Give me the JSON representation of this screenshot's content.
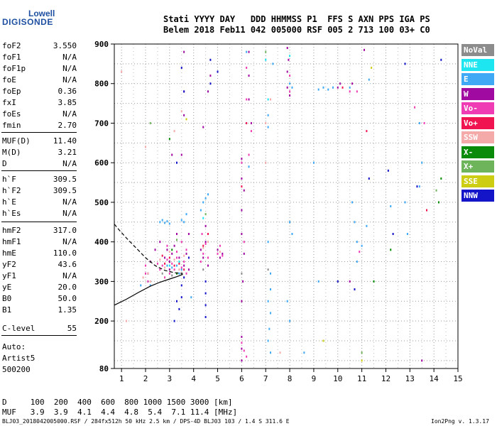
{
  "logo": {
    "line1": "Lowell",
    "line2": "DIGISONDE"
  },
  "header": {
    "line1": "Stati YYYY DAY   DDD HHMMSS P1  FFS S AXN PPS IGA PS",
    "line2": "Belem 2018 Feb11 042 005000 RSF 005 2 713 100 03+ C0"
  },
  "params": [
    {
      "name": "foF2",
      "value": "3.550"
    },
    {
      "name": "foF1",
      "value": "N/A"
    },
    {
      "name": "foF1p",
      "value": "N/A"
    },
    {
      "name": "foE",
      "value": "N/A"
    },
    {
      "name": "foEp",
      "value": "0.36"
    },
    {
      "name": "fxI",
      "value": "3.85"
    },
    {
      "name": "foEs",
      "value": "N/A"
    },
    {
      "name": "fmin",
      "value": "2.70"
    },
    {
      "name": "MUF(D)",
      "value": "11.40"
    },
    {
      "name": "M(D)",
      "value": "3.21"
    },
    {
      "name": "D",
      "value": "N/A"
    },
    {
      "name": "h`F",
      "value": "309.5"
    },
    {
      "name": "h`F2",
      "value": "309.5"
    },
    {
      "name": "h`E",
      "value": "N/A"
    },
    {
      "name": "h`Es",
      "value": "N/A"
    },
    {
      "name": "hmF2",
      "value": "317.0"
    },
    {
      "name": "hmF1",
      "value": "N/A"
    },
    {
      "name": "hmE",
      "value": "110.0"
    },
    {
      "name": "yF2",
      "value": "43.6"
    },
    {
      "name": "yF1",
      "value": "N/A"
    },
    {
      "name": "yE",
      "value": "20.0"
    },
    {
      "name": "B0",
      "value": "50.0"
    },
    {
      "name": "B1",
      "value": "1.35"
    },
    {
      "name": "C-level",
      "value": "55"
    }
  ],
  "autoscaling": {
    "line1": "Auto:",
    "line2": "Artist5",
    "line3": "500200"
  },
  "legend": [
    {
      "label": "NoVal",
      "color": "#8c8c8c"
    },
    {
      "label": "NNE",
      "color": "#1ee6f0"
    },
    {
      "label": "E",
      "color": "#3fa9f5"
    },
    {
      "label": "W",
      "color": "#a00aa0"
    },
    {
      "label": "Vo-",
      "color": "#f03cb4"
    },
    {
      "label": "Vo+",
      "color": "#f01450"
    },
    {
      "label": "SSW",
      "color": "#f5aaaa"
    },
    {
      "label": "X-",
      "color": "#0a8c0a"
    },
    {
      "label": "X+",
      "color": "#6eb45a"
    },
    {
      "label": "SSE",
      "color": "#cdcd14"
    },
    {
      "label": "NNW",
      "color": "#1414c8"
    }
  ],
  "footer": {
    "d_row": "D     100  200  400  600  800 1000 1500 3000 [km]",
    "muf_row": "MUF   3.9  3.9  4.1  4.4  4.8  5.4  7.1 11.4 [MHz]",
    "info": "BLJ03_2018042005000.RSF / 284fx512h 50 kHz 2.5 km / DPS-4D BLJ03 103 / 1.4 S 311.6 E",
    "version": "Ion2Png v. 1.3.17"
  },
  "chart_data": {
    "type": "scatter",
    "title": "",
    "xlabel": "",
    "ylabel": "",
    "xlim": [
      0.7,
      15
    ],
    "ylim": [
      80,
      900
    ],
    "xticks": [
      1,
      2,
      3,
      4,
      5,
      6,
      7,
      8,
      9,
      10,
      11,
      12,
      13,
      14,
      15
    ],
    "yticks": [
      80,
      200,
      300,
      400,
      500,
      600,
      700,
      800,
      900
    ],
    "grid": true,
    "series": [
      {
        "name": "E",
        "color": "#3fa9f5",
        "points": [
          [
            2.6,
            450
          ],
          [
            2.7,
            455
          ],
          [
            2.8,
            448
          ],
          [
            2.9,
            452
          ],
          [
            3.0,
            446
          ],
          [
            3.5,
            455
          ],
          [
            3.6,
            450
          ],
          [
            3.7,
            470
          ],
          [
            4.3,
            480
          ],
          [
            4.4,
            500
          ],
          [
            4.5,
            510
          ],
          [
            4.6,
            520
          ],
          [
            3.1,
            335
          ],
          [
            3.3,
            340
          ],
          [
            3.5,
            330
          ],
          [
            3.4,
            320
          ],
          [
            2.9,
            340
          ],
          [
            7.1,
            720
          ],
          [
            7.1,
            690
          ],
          [
            7.1,
            400
          ],
          [
            7.2,
            320
          ],
          [
            7.2,
            280
          ],
          [
            7.1,
            250
          ],
          [
            7.2,
            220
          ],
          [
            7.15,
            180
          ],
          [
            7.1,
            150
          ],
          [
            7.2,
            120
          ],
          [
            8.0,
            800
          ],
          [
            8.1,
            790
          ],
          [
            8.0,
            450
          ],
          [
            8.1,
            420
          ],
          [
            7.9,
            250
          ],
          [
            8.0,
            200
          ],
          [
            9.2,
            785
          ],
          [
            9.4,
            790
          ],
          [
            9.6,
            785
          ],
          [
            9.8,
            790
          ],
          [
            10.5,
            790
          ],
          [
            10.6,
            500
          ],
          [
            10.7,
            450
          ],
          [
            10.8,
            400
          ],
          [
            10.8,
            350
          ],
          [
            11.2,
            440
          ],
          [
            11.0,
            390
          ],
          [
            12.8,
            500
          ],
          [
            12.9,
            420
          ],
          [
            13.4,
            700
          ],
          [
            13.5,
            600
          ],
          [
            13.4,
            540
          ],
          [
            1.8,
            290
          ],
          [
            2.1,
            300
          ],
          [
            2.2,
            290
          ],
          [
            3.9,
            260
          ],
          [
            6.3,
            590
          ],
          [
            6.2,
            880
          ],
          [
            7.3,
            850
          ],
          [
            9.0,
            600
          ],
          [
            9.2,
            300
          ],
          [
            8.6,
            120
          ],
          [
            11.3,
            810
          ],
          [
            12.2,
            490
          ]
        ]
      },
      {
        "name": "W",
        "color": "#a00aa0",
        "points": [
          [
            2.8,
            360
          ],
          [
            2.9,
            380
          ],
          [
            3.0,
            350
          ],
          [
            3.1,
            370
          ],
          [
            3.2,
            390
          ],
          [
            3.0,
            330
          ],
          [
            3.4,
            360
          ],
          [
            3.6,
            340
          ],
          [
            3.7,
            370
          ],
          [
            3.3,
            420
          ],
          [
            3.5,
            620
          ],
          [
            3.6,
            720
          ],
          [
            3.6,
            780
          ],
          [
            3.6,
            880
          ],
          [
            3.1,
            620
          ],
          [
            4.3,
            380
          ],
          [
            4.4,
            360
          ],
          [
            4.5,
            400
          ],
          [
            4.5,
            440
          ],
          [
            4.6,
            340
          ],
          [
            4.6,
            780
          ],
          [
            4.7,
            820
          ],
          [
            4.4,
            690
          ],
          [
            5.0,
            380
          ],
          [
            5.1,
            360
          ],
          [
            5.2,
            370
          ],
          [
            6.0,
            610
          ],
          [
            6.0,
            560
          ],
          [
            6.1,
            530
          ],
          [
            6.0,
            480
          ],
          [
            6.0,
            420
          ],
          [
            6.1,
            370
          ],
          [
            6.05,
            300
          ],
          [
            6.0,
            250
          ],
          [
            6.0,
            160
          ],
          [
            6.0,
            130
          ],
          [
            6.0,
            100
          ],
          [
            6.3,
            880
          ],
          [
            6.3,
            820
          ],
          [
            6.3,
            760
          ],
          [
            6.4,
            700
          ],
          [
            7.9,
            890
          ],
          [
            7.95,
            860
          ],
          [
            7.9,
            830
          ],
          [
            7.9,
            790
          ],
          [
            8.0,
            770
          ],
          [
            10.6,
            800
          ],
          [
            10.5,
            300
          ],
          [
            2.6,
            400
          ],
          [
            2.4,
            380
          ],
          [
            2.2,
            350
          ],
          [
            2.1,
            320
          ],
          [
            3.8,
            420
          ],
          [
            3.8,
            330
          ],
          [
            10.0,
            790
          ],
          [
            10.1,
            800
          ],
          [
            11.1,
            885
          ],
          [
            13.5,
            100
          ]
        ]
      },
      {
        "name": "Vo-",
        "color": "#f03cb4",
        "points": [
          [
            2.6,
            330
          ],
          [
            2.7,
            340
          ],
          [
            2.8,
            310
          ],
          [
            2.9,
            355
          ],
          [
            3.0,
            320
          ],
          [
            3.1,
            345
          ],
          [
            3.2,
            330
          ],
          [
            3.3,
            360
          ],
          [
            3.5,
            335
          ],
          [
            3.6,
            350
          ],
          [
            3.7,
            320
          ],
          [
            3.7,
            380
          ],
          [
            2.9,
            390
          ],
          [
            3.3,
            375
          ],
          [
            3.5,
            400
          ],
          [
            4.3,
            350
          ],
          [
            4.35,
            420
          ],
          [
            4.4,
            370
          ],
          [
            4.5,
            395
          ],
          [
            4.6,
            360
          ],
          [
            5.0,
            370
          ],
          [
            5.1,
            390
          ],
          [
            5.2,
            365
          ],
          [
            6.0,
            600
          ],
          [
            6.1,
            400
          ],
          [
            6.3,
            620
          ],
          [
            6.4,
            680
          ],
          [
            6.2,
            840
          ],
          [
            6.2,
            760
          ],
          [
            8.0,
            820
          ],
          [
            8.0,
            780
          ],
          [
            10.5,
            780
          ],
          [
            10.8,
            780
          ],
          [
            10.9,
            375
          ],
          [
            2.0,
            320
          ],
          [
            2.1,
            300
          ],
          [
            2.0,
            340
          ],
          [
            2.5,
            345
          ],
          [
            6.1,
            125
          ],
          [
            6.0,
            145
          ],
          [
            6.2,
            110
          ],
          [
            13.6,
            700
          ],
          [
            13.2,
            740
          ]
        ]
      },
      {
        "name": "Vo+",
        "color": "#f01450",
        "points": [
          [
            2.8,
            345
          ],
          [
            3.0,
            360
          ],
          [
            3.2,
            340
          ],
          [
            3.4,
            345
          ],
          [
            3.6,
            330
          ],
          [
            2.7,
            365
          ],
          [
            4.4,
            390
          ],
          [
            4.6,
            420
          ],
          [
            6.0,
            540
          ],
          [
            6.2,
            700
          ],
          [
            10.2,
            790
          ],
          [
            11.2,
            680
          ],
          [
            13.7,
            480
          ]
        ]
      },
      {
        "name": "SSW",
        "color": "#f5aaaa",
        "points": [
          [
            2.6,
            355
          ],
          [
            2.8,
            335
          ],
          [
            3.0,
            375
          ],
          [
            3.2,
            355
          ],
          [
            3.4,
            330
          ],
          [
            3.6,
            365
          ],
          [
            4.4,
            385
          ],
          [
            4.6,
            400
          ],
          [
            5.1,
            375
          ],
          [
            1.9,
            310
          ],
          [
            2.1,
            320
          ],
          [
            2.2,
            300
          ],
          [
            3.2,
            680
          ],
          [
            3.5,
            730
          ],
          [
            7.0,
            600
          ],
          [
            7.0,
            700
          ],
          [
            7.2,
            760
          ],
          [
            1.0,
            830
          ],
          [
            1.2,
            200
          ],
          [
            2.0,
            640
          ],
          [
            7.6,
            120
          ]
        ]
      },
      {
        "name": "X-",
        "color": "#0a8c0a",
        "points": [
          [
            3.0,
            660
          ],
          [
            3.1,
            380
          ],
          [
            3.3,
            320
          ],
          [
            12.2,
            380
          ],
          [
            14.2,
            500
          ],
          [
            14.3,
            560
          ],
          [
            11.5,
            300
          ]
        ]
      },
      {
        "name": "X+",
        "color": "#6eb45a",
        "points": [
          [
            3.3,
            405
          ],
          [
            4.5,
            470
          ],
          [
            7.0,
            880
          ],
          [
            11.0,
            120
          ],
          [
            14.1,
            530
          ],
          [
            2.2,
            700
          ]
        ]
      },
      {
        "name": "SSE",
        "color": "#cdcd14",
        "points": [
          [
            3.7,
            710
          ],
          [
            11.4,
            840
          ],
          [
            9.4,
            150
          ],
          [
            11.0,
            100
          ]
        ]
      },
      {
        "name": "NNW",
        "color": "#1414c8",
        "points": [
          [
            3.4,
            230
          ],
          [
            3.5,
            260
          ],
          [
            3.5,
            290
          ],
          [
            3.6,
            310
          ],
          [
            3.3,
            600
          ],
          [
            3.5,
            840
          ],
          [
            3.2,
            200
          ],
          [
            3.3,
            250
          ],
          [
            4.5,
            300
          ],
          [
            4.5,
            270
          ],
          [
            4.5,
            240
          ],
          [
            4.5,
            210
          ],
          [
            4.7,
            860
          ],
          [
            4.7,
            800
          ],
          [
            5.0,
            830
          ],
          [
            3.6,
            780
          ],
          [
            3.8,
            360
          ],
          [
            12.1,
            580
          ],
          [
            10.7,
            280
          ],
          [
            10.0,
            300
          ],
          [
            12.3,
            420
          ],
          [
            13.3,
            540
          ],
          [
            12.8,
            850
          ],
          [
            14.3,
            860
          ],
          [
            11.3,
            560
          ]
        ]
      },
      {
        "name": "NNE",
        "color": "#1ee6f0",
        "points": [
          [
            3.0,
            340
          ],
          [
            3.4,
            350
          ],
          [
            4.4,
            460
          ],
          [
            7.1,
            760
          ],
          [
            7.0,
            860
          ],
          [
            8.0,
            870
          ]
        ]
      },
      {
        "name": "NoVal",
        "color": "#8c8c8c",
        "points": [
          [
            2.7,
            320
          ],
          [
            3.1,
            315
          ],
          [
            3.5,
            320
          ],
          [
            4.4,
            330
          ],
          [
            6.0,
            320
          ],
          [
            7.1,
            330
          ]
        ]
      }
    ],
    "curves": [
      {
        "style": "dashed",
        "points": [
          [
            0.7,
            445
          ],
          [
            0.9,
            430
          ],
          [
            1.2,
            410
          ],
          [
            1.6,
            385
          ],
          [
            2.0,
            360
          ],
          [
            2.4,
            340
          ],
          [
            2.8,
            328
          ],
          [
            3.2,
            322
          ],
          [
            3.55,
            320
          ]
        ]
      },
      {
        "style": "solid",
        "points": [
          [
            0.7,
            240
          ],
          [
            1.2,
            255
          ],
          [
            1.7,
            272
          ],
          [
            2.2,
            288
          ],
          [
            2.6,
            298
          ],
          [
            3.0,
            306
          ],
          [
            3.3,
            312
          ],
          [
            3.55,
            318
          ]
        ]
      }
    ]
  }
}
